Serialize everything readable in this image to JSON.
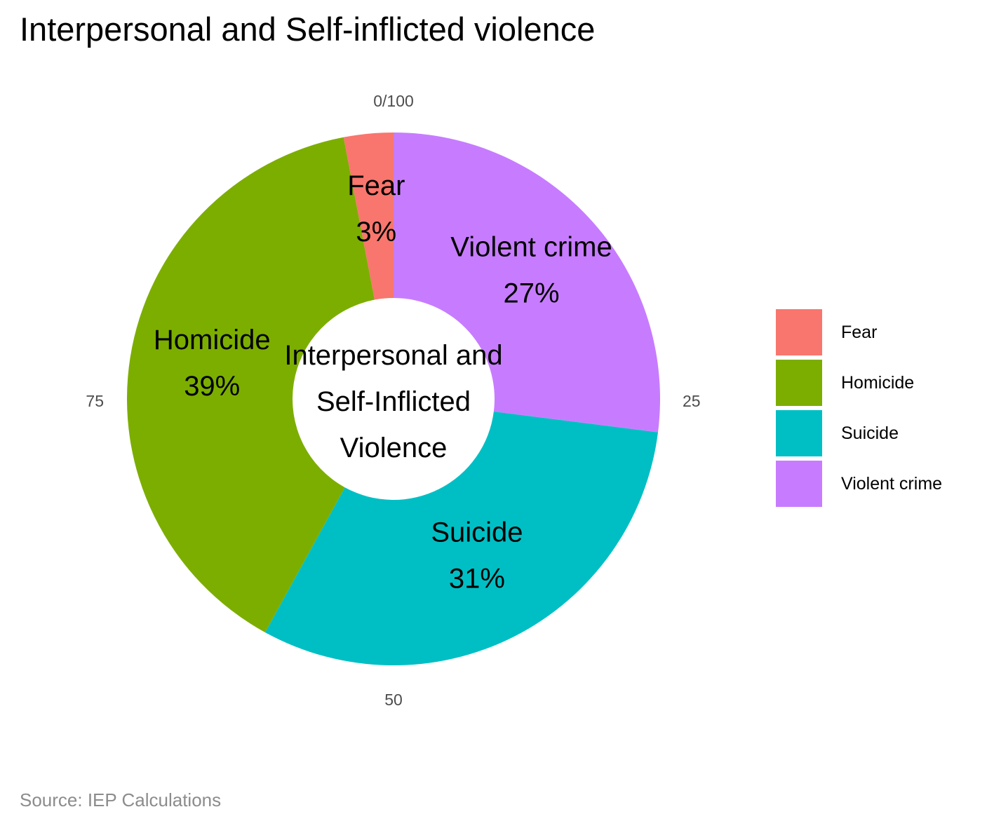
{
  "chart_data": {
    "type": "pie",
    "title": "Interpersonal and Self-inflicted violence",
    "center_label": [
      "Interpersonal and",
      "Self-Inflicted",
      "Violence"
    ],
    "caption": "Source: IEP Calculations",
    "angle_ticks": [
      "0/100",
      "25",
      "50",
      "75"
    ],
    "categories": [
      "Fear",
      "Homicide",
      "Suicide",
      "Violent crime"
    ],
    "values": [
      3,
      39,
      31,
      27
    ],
    "labels": [
      "3%",
      "39%",
      "31%",
      "27%"
    ],
    "colors": [
      "#F8766D",
      "#7CAE00",
      "#00BFC4",
      "#C77CFF"
    ],
    "start_order": [
      "Violent crime",
      "Suicide",
      "Homicide",
      "Fear"
    ],
    "legend_position": "right"
  }
}
